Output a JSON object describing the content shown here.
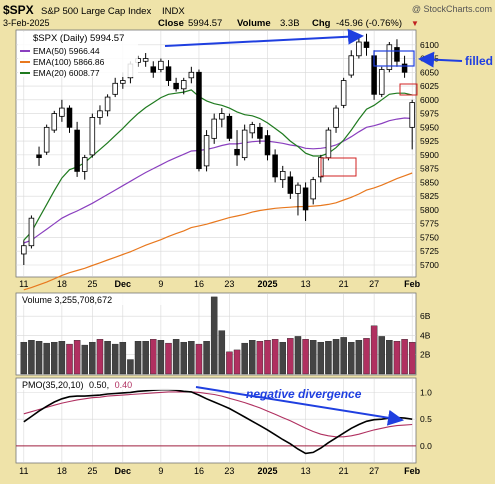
{
  "header": {
    "symbol": "$SPX",
    "name": "S&P 500 Large Cap Index",
    "exchange": "INDX",
    "watermark": "@ StockCharts.com",
    "date": "3-Feb-2025",
    "close_label": "Close",
    "close_value": "5994.57",
    "volume_label": "Volume",
    "volume_value": "3.3B",
    "chg_label": "Chg",
    "chg_value": "-45.96 (-0.76%)",
    "chg_arrow": "▼"
  },
  "colors": {
    "panel_bg": "#efe3a9",
    "plot_bg": "#ffffff",
    "ema50": "#8a3fbf",
    "ema100": "#e8781e",
    "ema20": "#1f7a1f",
    "annotation": "#1f3fe0",
    "box_red": "#d02020",
    "vol_up": "#444444",
    "vol_down": "#b03060",
    "pmo": "#000000",
    "pmo_signal": "#b03060"
  },
  "chart_data": [
    {
      "type": "candlestick",
      "legend": [
        {
          "label": "$SPX (Daily) 5994.57",
          "color": "#000000",
          "swatch": "none"
        },
        {
          "label": "EMA(50) 5966.44",
          "color": "#8a3fbf"
        },
        {
          "label": "EMA(100) 5866.86",
          "color": "#e8781e"
        },
        {
          "label": "EMA(20) 6008.77",
          "color": "#1f7a1f"
        }
      ],
      "legend_position": "top-left",
      "yticks": [
        5700,
        5725,
        5750,
        5775,
        5800,
        5825,
        5850,
        5875,
        5900,
        5925,
        5950,
        5975,
        6000,
        6025,
        6050,
        6075,
        6100
      ],
      "ylim": [
        5680,
        6125
      ],
      "xlabels": [
        "11",
        "18",
        "25",
        "Dec",
        "9",
        "16",
        "23",
        "2025",
        "13",
        "21",
        "27",
        "Feb"
      ],
      "xlabel_indices": [
        0,
        5,
        9,
        13,
        18,
        23,
        27,
        32,
        37,
        42,
        46,
        51
      ],
      "grid": true,
      "ohlc": [
        [
          5720,
          5745,
          5700,
          5735
        ],
        [
          5735,
          5790,
          5730,
          5785
        ],
        [
          5900,
          5915,
          5880,
          5895
        ],
        [
          5905,
          5955,
          5900,
          5950
        ],
        [
          5945,
          5980,
          5940,
          5975
        ],
        [
          5970,
          6000,
          5960,
          5985
        ],
        [
          5985,
          5990,
          5940,
          5950
        ],
        [
          5945,
          5960,
          5860,
          5870
        ],
        [
          5870,
          5900,
          5855,
          5895
        ],
        [
          5900,
          5975,
          5895,
          5968
        ],
        [
          5968,
          5990,
          5955,
          5980
        ],
        [
          5980,
          6010,
          5970,
          6005
        ],
        [
          6010,
          6040,
          6005,
          6030
        ],
        [
          6030,
          6050,
          6020,
          6035
        ],
        [
          6040,
          6070,
          6030,
          6065
        ],
        [
          6068,
          6080,
          6060,
          6075
        ],
        [
          6070,
          6085,
          6060,
          6075
        ],
        [
          6060,
          6070,
          6040,
          6050
        ],
        [
          6055,
          6075,
          6050,
          6070
        ],
        [
          6060,
          6072,
          6025,
          6035
        ],
        [
          6030,
          6040,
          6015,
          6020
        ],
        [
          6020,
          6040,
          6010,
          6035
        ],
        [
          6040,
          6060,
          6030,
          6050
        ],
        [
          6050,
          6055,
          5870,
          5875
        ],
        [
          5880,
          5945,
          5870,
          5935
        ],
        [
          5930,
          5975,
          5920,
          5965
        ],
        [
          5965,
          5985,
          5950,
          5975
        ],
        [
          5970,
          5975,
          5925,
          5930
        ],
        [
          5910,
          5945,
          5880,
          5900
        ],
        [
          5895,
          5955,
          5890,
          5945
        ],
        [
          5940,
          5960,
          5930,
          5955
        ],
        [
          5950,
          5958,
          5920,
          5930
        ],
        [
          5935,
          5945,
          5890,
          5900
        ],
        [
          5900,
          5910,
          5850,
          5860
        ],
        [
          5855,
          5880,
          5840,
          5870
        ],
        [
          5860,
          5870,
          5820,
          5830
        ],
        [
          5830,
          5850,
          5790,
          5845
        ],
        [
          5840,
          5850,
          5780,
          5800
        ],
        [
          5820,
          5860,
          5810,
          5855
        ],
        [
          5860,
          5900,
          5850,
          5895
        ],
        [
          5895,
          5950,
          5890,
          5945
        ],
        [
          5950,
          5990,
          5940,
          5985
        ],
        [
          5990,
          6040,
          5985,
          6035
        ],
        [
          6045,
          6090,
          6040,
          6080
        ],
        [
          6080,
          6115,
          6075,
          6105
        ],
        [
          6105,
          6120,
          6080,
          6095
        ],
        [
          6080,
          6090,
          6000,
          6010
        ],
        [
          6010,
          6060,
          6005,
          6055
        ],
        [
          6055,
          6105,
          6050,
          6100
        ],
        [
          6095,
          6110,
          6060,
          6070
        ],
        [
          6065,
          6080,
          6040,
          6050
        ],
        [
          5950,
          6000,
          5910,
          5995
        ]
      ],
      "ema50": [
        5740,
        5745,
        5755,
        5765,
        5775,
        5785,
        5792,
        5798,
        5805,
        5812,
        5820,
        5828,
        5836,
        5844,
        5852,
        5860,
        5868,
        5875,
        5882,
        5889,
        5895,
        5901,
        5907,
        5908,
        5910,
        5913,
        5917,
        5920,
        5920,
        5922,
        5924,
        5925,
        5925,
        5923,
        5921,
        5918,
        5916,
        5912,
        5911,
        5912,
        5914,
        5918,
        5925,
        5933,
        5942,
        5950,
        5953,
        5957,
        5962,
        5965,
        5967,
        5966
      ],
      "ema100": [
        5655,
        5659,
        5664,
        5669,
        5675,
        5681,
        5686,
        5690,
        5694,
        5699,
        5704,
        5709,
        5714,
        5719,
        5724,
        5730,
        5736,
        5741,
        5746,
        5752,
        5757,
        5762,
        5768,
        5771,
        5774,
        5778,
        5782,
        5786,
        5789,
        5792,
        5796,
        5799,
        5801,
        5803,
        5804,
        5805,
        5806,
        5806,
        5807,
        5808,
        5810,
        5813,
        5818,
        5823,
        5829,
        5836,
        5840,
        5845,
        5851,
        5857,
        5862,
        5867
      ],
      "ema20": [
        5745,
        5760,
        5785,
        5810,
        5835,
        5858,
        5873,
        5878,
        5886,
        5898,
        5910,
        5922,
        5935,
        5948,
        5962,
        5975,
        5986,
        5995,
        6004,
        6010,
        6012,
        6014,
        6018,
        6006,
        5998,
        5993,
        5990,
        5985,
        5978,
        5973,
        5971,
        5966,
        5958,
        5948,
        5938,
        5925,
        5915,
        5903,
        5898,
        5898,
        5903,
        5913,
        5927,
        5945,
        5965,
        5983,
        5990,
        6000,
        6010,
        6012,
        6012,
        6009
      ]
    },
    {
      "type": "bar",
      "legend": "Volume 3,255,708,672",
      "yticks": [
        "2B",
        "4B",
        "6B"
      ],
      "ytick_values": [
        2,
        4,
        6
      ],
      "ylim": [
        0,
        8.3
      ],
      "unit": "billions of shares",
      "values": [
        3.3,
        3.5,
        3.4,
        3.2,
        3.3,
        3.4,
        3.1,
        3.5,
        3.0,
        3.3,
        3.6,
        3.4,
        3.1,
        3.3,
        1.5,
        3.4,
        3.4,
        3.6,
        3.5,
        3.2,
        3.6,
        3.3,
        3.4,
        3.1,
        3.4,
        8.0,
        4.5,
        2.3,
        2.5,
        3.2,
        3.5,
        3.4,
        3.5,
        3.6,
        3.3,
        3.7,
        3.9,
        3.6,
        3.5,
        3.3,
        3.4,
        3.6,
        3.8,
        3.3,
        3.5,
        3.7,
        5.0,
        3.9,
        3.5,
        3.4,
        3.6,
        3.3
      ],
      "down_days": [
        6,
        7,
        10,
        17,
        19,
        23,
        27,
        28,
        31,
        32,
        33,
        35,
        37,
        45,
        46,
        49,
        50,
        51
      ]
    },
    {
      "type": "line",
      "legend_prefix": "PMO(35,20,10)",
      "legend_pmo": "0.50,",
      "legend_signal": "0.40",
      "yticks": [
        0.0,
        0.5,
        1.0
      ],
      "ylim": [
        -0.3,
        1.25
      ],
      "series": [
        {
          "name": "PMO",
          "values": [
            0.45,
            0.55,
            0.65,
            0.74,
            0.82,
            0.88,
            0.92,
            0.93,
            0.93,
            0.94,
            0.95,
            0.97,
            0.98,
            0.99,
            1.0,
            1.02,
            1.03,
            1.04,
            1.05,
            1.05,
            1.04,
            1.02,
            1.01,
            0.95,
            0.88,
            0.82,
            0.76,
            0.7,
            0.62,
            0.54,
            0.46,
            0.38,
            0.3,
            0.21,
            0.12,
            0.04,
            -0.06,
            -0.14,
            -0.12,
            -0.04,
            0.06,
            0.15,
            0.24,
            0.33,
            0.4,
            0.46,
            0.49,
            0.5,
            0.52,
            0.53,
            0.52,
            0.5
          ]
        },
        {
          "name": "Signal",
          "values": [
            0.6,
            0.64,
            0.68,
            0.72,
            0.76,
            0.8,
            0.83,
            0.86,
            0.88,
            0.9,
            0.91,
            0.93,
            0.94,
            0.95,
            0.96,
            0.97,
            0.98,
            0.99,
            1.0,
            1.01,
            1.01,
            1.01,
            1.01,
            1.0,
            0.98,
            0.96,
            0.93,
            0.89,
            0.85,
            0.81,
            0.76,
            0.71,
            0.65,
            0.59,
            0.53,
            0.47,
            0.4,
            0.33,
            0.27,
            0.22,
            0.19,
            0.17,
            0.17,
            0.19,
            0.22,
            0.26,
            0.3,
            0.33,
            0.36,
            0.38,
            0.39,
            0.4
          ]
        }
      ],
      "zero_line": true
    }
  ],
  "annotations": {
    "filled": "filled",
    "divergence": "negative divergence"
  }
}
